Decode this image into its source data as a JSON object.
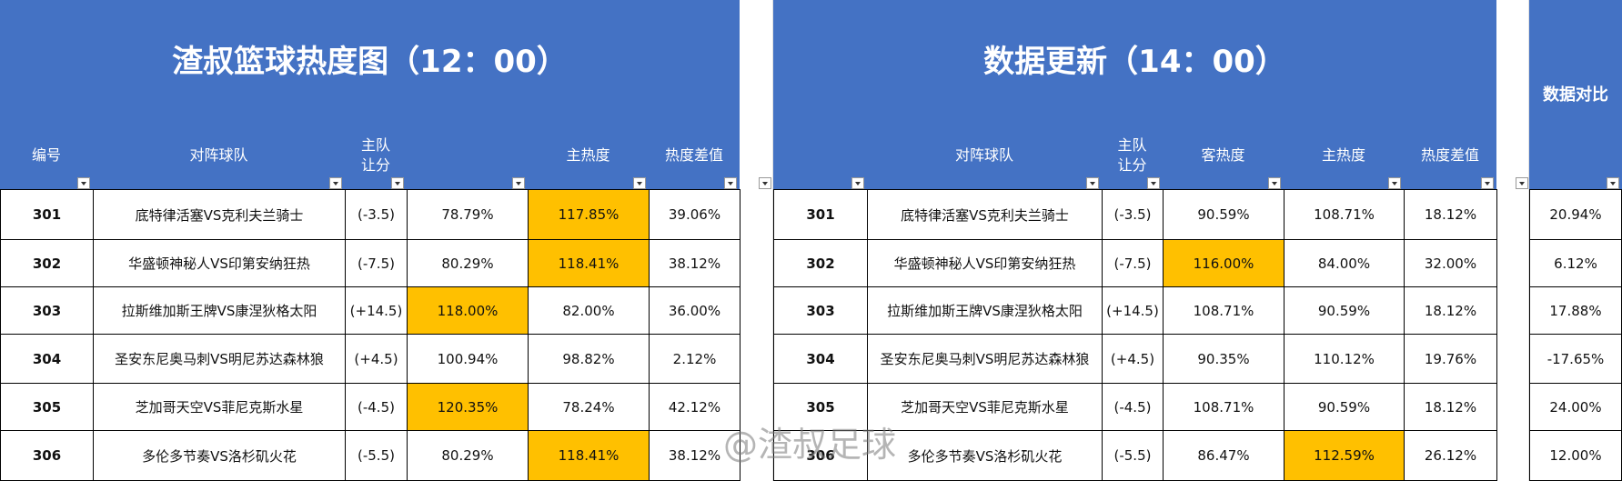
{
  "tables": [
    {
      "title": "渣叔篮球热度图（12：00）",
      "headers": [
        "编号",
        "对阵球队",
        "主队\n让分",
        null,
        "主热度",
        "热度差值"
      ],
      "rows": [
        [
          "301",
          "底特律活塞VS克利夫兰骑士",
          "(-3.5)",
          "78.79%",
          "117.85%",
          "39.06%"
        ],
        [
          "302",
          "华盛顿神秘人VS印第安纳狂热",
          "(-7.5)",
          "80.29%",
          "118.41%",
          "38.12%"
        ],
        [
          "303",
          "拉斯维加斯王牌VS康涅狄格太阳",
          "(+14.5)",
          "118.00%",
          "82.00%",
          "36.00%"
        ],
        [
          "304",
          "圣安东尼奥马刺VS明尼苏达森林狼",
          "(+4.5)",
          "100.94%",
          "98.82%",
          "2.12%"
        ],
        [
          "305",
          "芝加哥天空VS菲尼克斯水星",
          "(-4.5)",
          "120.35%",
          "78.24%",
          "42.12%"
        ],
        [
          "306",
          "多伦多节奏VS洛杉矶火花",
          "(-5.5)",
          "80.29%",
          "118.41%",
          "38.12%"
        ]
      ],
      "highlighted": [
        [
          0,
          4
        ],
        [
          1,
          4
        ],
        [
          2,
          3
        ],
        [
          4,
          3
        ],
        [
          5,
          4
        ]
      ]
    },
    {
      "title": "数据更新（14：00）",
      "headers": [
        null,
        "对阵球队",
        "主队\n让分",
        "客热度",
        "主热度",
        "热度差值"
      ],
      "rows": [
        [
          "301",
          "底特律活塞VS克利夫兰骑士",
          "(-3.5)",
          "90.59%",
          "108.71%",
          "18.12%"
        ],
        [
          "302",
          "华盛顿神秘人VS印第安纳狂热",
          "(-7.5)",
          "116.00%",
          "84.00%",
          "32.00%"
        ],
        [
          "303",
          "拉斯维加斯王牌VS康涅狄格太阳",
          "(+14.5)",
          "108.71%",
          "90.59%",
          "18.12%"
        ],
        [
          "304",
          "圣安东尼奥马刺VS明尼苏达森林狼",
          "(+4.5)",
          "90.35%",
          "110.12%",
          "19.76%"
        ],
        [
          "305",
          "芝加哥天空VS菲尼克斯水星",
          "(-4.5)",
          "108.71%",
          "90.59%",
          "18.12%"
        ],
        [
          "306",
          "多伦多节奏VS洛杉矶火花",
          "(-5.5)",
          "86.47%",
          "112.59%",
          "26.12%"
        ]
      ],
      "highlighted": [
        [
          1,
          3
        ],
        [
          5,
          4
        ]
      ]
    }
  ],
  "comparison": {
    "title": "数据对比",
    "values": [
      "20.94%",
      "6.12%",
      "17.88%",
      "-17.65%",
      "24.00%",
      "12.00%"
    ]
  },
  "highlight_color": "#ffc000",
  "header_color": "#4472c4",
  "watermark": "@渣叔足球"
}
